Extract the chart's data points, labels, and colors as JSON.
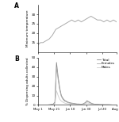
{
  "panel_A_label": "A",
  "panel_B_label": "B",
  "x_tick_labels": [
    "May 1",
    "May 21",
    "Jun 10",
    "Jun 30",
    "Jul 20",
    "Aug 8"
  ],
  "x_tick_positions": [
    0,
    20,
    40,
    60,
    80,
    98
  ],
  "temp_ylabel": "Minimum temperature",
  "pct_ylabel": "% Dispersing adults collected",
  "legend_labels": [
    "Total",
    "Females",
    "Males"
  ],
  "line_color": "#aaaaaa",
  "temp_data_x": [
    0,
    3,
    6,
    10,
    14,
    18,
    22,
    26,
    30,
    34,
    38,
    42,
    46,
    50,
    54,
    58,
    62,
    66,
    70,
    74,
    78,
    82,
    86,
    90,
    94,
    98
  ],
  "temp_data_y": [
    14,
    15,
    15,
    16,
    17,
    19,
    22,
    23,
    24,
    25,
    26,
    27,
    26,
    27,
    26,
    27,
    28,
    29,
    28,
    27,
    27,
    26,
    27,
    26,
    27,
    26
  ],
  "total_x": [
    0,
    3,
    6,
    9,
    12,
    15,
    17,
    19,
    21,
    23,
    25,
    27,
    29,
    31,
    33,
    35,
    37,
    39,
    41,
    43,
    45,
    47,
    49,
    51,
    53,
    55,
    57,
    59,
    61,
    63,
    65,
    67,
    69,
    71,
    73,
    75,
    77,
    79,
    81,
    83,
    85,
    87,
    89,
    91,
    93,
    95,
    98
  ],
  "total_y": [
    0,
    0,
    0,
    0,
    0,
    0.2,
    0.5,
    1.0,
    3.0,
    45,
    30,
    18,
    10,
    7,
    5,
    4,
    3,
    2.5,
    2,
    1.8,
    1.5,
    1.2,
    1.0,
    1.0,
    0.8,
    0.8,
    1.5,
    2.5,
    4.5,
    3.5,
    2.5,
    1.5,
    1.0,
    0.8,
    0.5,
    0.5,
    0.3,
    0.3,
    0.3,
    0.2,
    0.2,
    0.2,
    0.2,
    0.1,
    0,
    0,
    0
  ],
  "female_x": [
    0,
    3,
    6,
    9,
    12,
    15,
    17,
    19,
    21,
    23,
    25,
    27,
    29,
    31,
    33,
    35,
    37,
    39,
    41,
    43,
    45,
    47,
    49,
    51,
    53,
    55,
    57,
    59,
    61,
    63,
    65,
    67,
    69,
    71,
    73,
    75,
    77,
    79,
    81,
    83,
    85,
    87,
    89,
    91,
    93,
    95,
    98
  ],
  "female_y": [
    0,
    0,
    0,
    0,
    0,
    0.2,
    0.4,
    0.8,
    2.5,
    40,
    27,
    16,
    9,
    6,
    4,
    3.5,
    2.5,
    2,
    1.8,
    1.5,
    1.2,
    1.0,
    0.8,
    0.8,
    0.7,
    0.7,
    1.2,
    2.0,
    4.0,
    3.0,
    2.2,
    1.4,
    1.0,
    0.7,
    0.4,
    0.4,
    0.3,
    0.3,
    0.2,
    0.2,
    0.2,
    0.2,
    0.1,
    0.1,
    0,
    0,
    0
  ],
  "male_x": [
    0,
    3,
    6,
    9,
    12,
    15,
    17,
    19,
    21,
    23,
    25,
    27,
    29,
    31,
    33,
    35,
    37,
    39,
    41,
    43,
    45,
    47,
    49,
    51,
    53,
    55,
    57,
    59,
    61,
    63,
    65,
    67,
    69,
    71,
    73,
    75,
    77,
    79,
    81,
    83,
    85,
    87,
    89,
    91,
    93,
    95,
    98
  ],
  "male_y": [
    0,
    0,
    0,
    0,
    0,
    0.1,
    0.2,
    0.4,
    1.2,
    15,
    10,
    6,
    4,
    3,
    2,
    1.5,
    1.2,
    1.0,
    0.8,
    0.6,
    0.5,
    0.4,
    0.3,
    0.3,
    0.2,
    0.2,
    0.8,
    1.3,
    2.2,
    1.8,
    1.2,
    0.8,
    0.5,
    0.4,
    0.2,
    0.2,
    0.1,
    0.1,
    0.1,
    0.1,
    0.1,
    0.1,
    0.1,
    0,
    0,
    0,
    0
  ],
  "temp_ylim": [
    10,
    35
  ],
  "pct_ylim": [
    0,
    50
  ],
  "temp_yticks": [
    15,
    20,
    25,
    30
  ],
  "pct_yticks": [
    0,
    10,
    20,
    30,
    40,
    50
  ]
}
